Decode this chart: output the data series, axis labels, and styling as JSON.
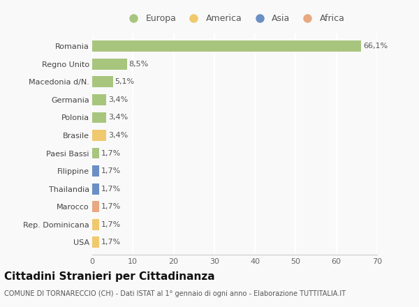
{
  "categories": [
    "Romania",
    "Regno Unito",
    "Macedonia d/N.",
    "Germania",
    "Polonia",
    "Brasile",
    "Paesi Bassi",
    "Filippine",
    "Thailandia",
    "Marocco",
    "Rep. Dominicana",
    "USA"
  ],
  "values": [
    66.1,
    8.5,
    5.1,
    3.4,
    3.4,
    3.4,
    1.7,
    1.7,
    1.7,
    1.7,
    1.7,
    1.7
  ],
  "continents": [
    "Europa",
    "Europa",
    "Europa",
    "Europa",
    "Europa",
    "America",
    "Europa",
    "Asia",
    "Asia",
    "Africa",
    "America",
    "America"
  ],
  "continent_colors": {
    "Europa": "#a8c57e",
    "America": "#f0c86e",
    "Asia": "#6b8fc4",
    "Africa": "#e8a882"
  },
  "legend_order": [
    "Europa",
    "America",
    "Asia",
    "Africa"
  ],
  "title": "Cittadini Stranieri per Cittadinanza",
  "subtitle": "COMUNE DI TORNARECCIO (CH) - Dati ISTAT al 1° gennaio di ogni anno - Elaborazione TUTTITALIA.IT",
  "xlim": [
    0,
    70
  ],
  "xticks": [
    0,
    10,
    20,
    30,
    40,
    50,
    60,
    70
  ],
  "background_color": "#f9f9f9",
  "grid_color": "#ffffff",
  "bar_height": 0.62,
  "title_fontsize": 11,
  "subtitle_fontsize": 7,
  "label_fontsize": 8,
  "tick_fontsize": 8,
  "legend_fontsize": 9
}
